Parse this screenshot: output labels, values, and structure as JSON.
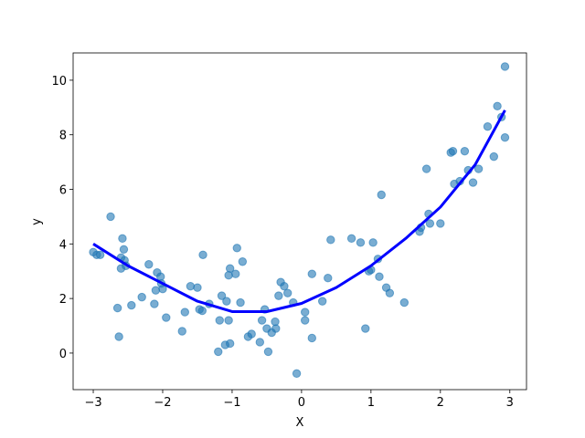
{
  "chart_data": {
    "type": "scatter",
    "xlabel": "X",
    "ylabel": "y",
    "xlim": [
      -3.29,
      3.24
    ],
    "ylim": [
      -1.34,
      11.0
    ],
    "xticks": [
      {
        "value": -3,
        "label": "−3"
      },
      {
        "value": -2,
        "label": "−2"
      },
      {
        "value": -1,
        "label": "−1"
      },
      0,
      1,
      2,
      3
    ],
    "yticks": [
      0,
      2,
      4,
      6,
      8,
      10
    ],
    "color": "#1f77b4",
    "alpha": 0.6,
    "x": [
      -3.0,
      -2.95,
      -2.9,
      -2.75,
      -2.65,
      -2.63,
      -2.6,
      -2.6,
      -2.58,
      -2.56,
      -2.55,
      -2.53,
      -2.45,
      -2.3,
      -2.2,
      -2.12,
      -2.1,
      -2.08,
      -2.03,
      -2.02,
      -2.0,
      -1.95,
      -1.72,
      -1.68,
      -1.6,
      -1.5,
      -1.47,
      -1.43,
      -1.42,
      -1.33,
      -1.2,
      -1.18,
      -1.15,
      -1.1,
      -1.08,
      -1.05,
      -1.03,
      -1.05,
      -1.03,
      -0.95,
      -0.93,
      -0.88,
      -0.85,
      -0.77,
      -0.72,
      -0.6,
      -0.57,
      -0.53,
      -0.5,
      -0.48,
      -0.43,
      -0.38,
      -0.37,
      -0.33,
      -0.3,
      -0.25,
      -0.2,
      -0.12,
      -0.07,
      0.05,
      0.05,
      0.15,
      0.15,
      0.3,
      0.38,
      0.42,
      0.72,
      0.85,
      0.92,
      0.97,
      1.0,
      1.03,
      1.1,
      1.12,
      1.15,
      1.22,
      1.27,
      1.48,
      1.7,
      1.72,
      1.8,
      1.83,
      1.85,
      2.0,
      2.15,
      2.18,
      2.2,
      2.28,
      2.35,
      2.4,
      2.47,
      2.55,
      2.68,
      2.77,
      2.82,
      2.88,
      2.93,
      2.93
    ],
    "y": [
      3.7,
      3.6,
      3.6,
      5.0,
      1.65,
      0.6,
      3.1,
      3.5,
      4.2,
      3.8,
      3.4,
      3.2,
      1.75,
      2.05,
      3.25,
      1.8,
      2.3,
      2.95,
      2.8,
      2.55,
      2.35,
      1.3,
      0.8,
      1.5,
      2.45,
      2.4,
      1.6,
      1.55,
      3.6,
      1.8,
      0.05,
      1.2,
      2.1,
      0.3,
      1.9,
      2.85,
      3.1,
      1.2,
      0.35,
      2.9,
      3.85,
      1.85,
      3.35,
      0.6,
      0.7,
      0.4,
      1.2,
      1.6,
      0.9,
      0.05,
      0.75,
      1.15,
      0.9,
      2.1,
      2.6,
      2.45,
      2.2,
      1.85,
      -0.75,
      1.5,
      1.2,
      2.9,
      0.55,
      1.9,
      2.75,
      4.15,
      4.2,
      4.05,
      0.9,
      3.0,
      3.05,
      4.05,
      3.45,
      2.8,
      5.8,
      2.4,
      2.2,
      1.85,
      4.45,
      4.6,
      6.75,
      5.1,
      4.75,
      4.75,
      7.35,
      7.4,
      6.2,
      6.3,
      7.4,
      6.7,
      6.25,
      6.75,
      8.3,
      7.2,
      9.05,
      8.65,
      7.9,
      10.5
    ],
    "curve": {
      "color": "#0000ff",
      "x": [
        -3.0,
        -2.5,
        -2.0,
        -1.5,
        -1.0,
        -0.5,
        0.0,
        0.5,
        1.0,
        1.5,
        2.0,
        2.5,
        2.93
      ],
      "y": [
        4.0,
        3.2,
        2.55,
        1.9,
        1.52,
        1.52,
        1.82,
        2.4,
        3.2,
        4.2,
        5.35,
        6.9,
        8.9
      ]
    }
  }
}
